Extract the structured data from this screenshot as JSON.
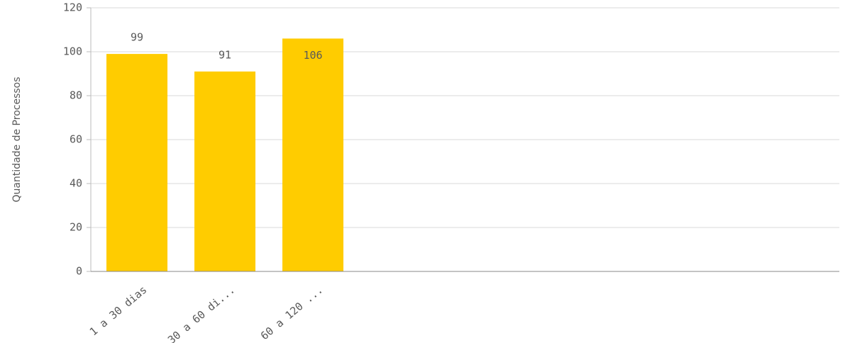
{
  "chart_data": {
    "type": "bar",
    "y_label": "Quantidade de Processos",
    "categories": [
      "1 a 30 dias",
      "30 a 60 di...",
      "60 a 120 ..."
    ],
    "values": [
      99,
      91,
      106
    ],
    "color": "#ffcc00",
    "ylim": [
      0,
      120
    ],
    "yticks": [
      0,
      20,
      40,
      60,
      80,
      100,
      120
    ],
    "grid": true
  }
}
